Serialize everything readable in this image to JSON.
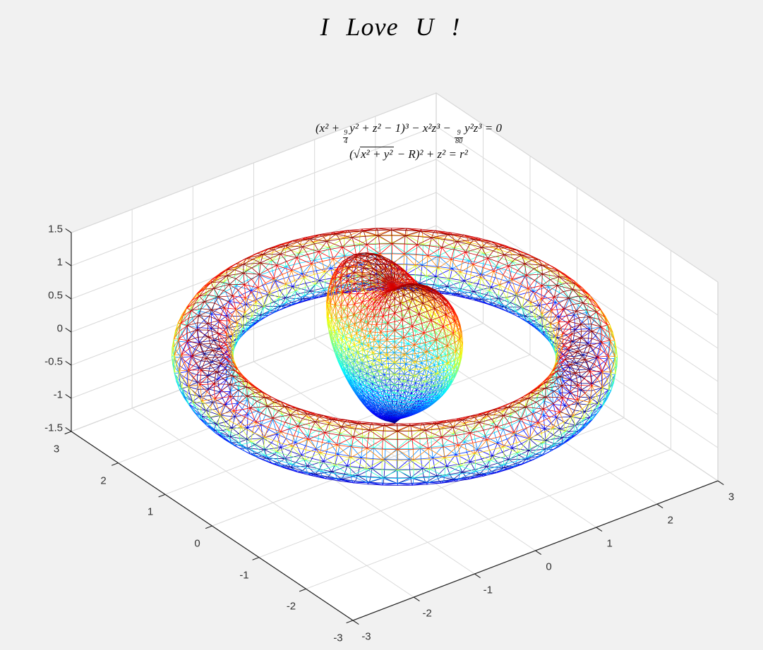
{
  "title": {
    "text": "I Love U !"
  },
  "equations": {
    "line1": {
      "pre": "(x² + ",
      "frac1_num": "9",
      "frac1_den": "4",
      "mid": "y² + z² − 1)³ − x²z³ − ",
      "frac2_num": "9",
      "frac2_den": "80",
      "post": "y²z³ = 0"
    },
    "line2": {
      "pre": "(√",
      "radicand": "x² + y²",
      "post": " − R)² + z² = r²"
    }
  },
  "chart_data": {
    "type": "surface-mesh-3d",
    "title": "I Love U !",
    "colormap": "jet",
    "legend_position": "none",
    "grid": true,
    "view": {
      "azimuth_deg": -37.5,
      "elevation_deg": 30,
      "projection": "orthographic"
    },
    "axes": {
      "x": {
        "range": [
          -3,
          3
        ],
        "tick_values": [
          3,
          2,
          1,
          0,
          -1,
          -2,
          -3
        ],
        "tick_labels": [
          "3",
          "2",
          "1",
          "0",
          "-1",
          "-2",
          "-3"
        ]
      },
      "y": {
        "range": [
          -3,
          3
        ],
        "tick_values": [
          -3,
          -2,
          -1,
          0,
          1,
          2,
          3
        ],
        "tick_labels": [
          "-3",
          "-2",
          "-1",
          "0",
          "1",
          "2",
          "3"
        ]
      },
      "z": {
        "range": [
          -1.5,
          1.5
        ],
        "tick_values": [
          1.5,
          1,
          0.5,
          0,
          -0.5,
          -1,
          -1.5
        ],
        "tick_labels": [
          "1.5",
          "1",
          "0.5",
          "0",
          "-0.5",
          "-1",
          "-1.5"
        ]
      }
    },
    "surfaces": [
      {
        "name": "heart-surface",
        "equation": "(x^2 + 9/4 y^2 + z^2 - 1)^3 - x^2 z^3 - 9/80 y^2 z^3 = 0",
        "style": "triangulated wireframe, jet colormap mapped over its z range",
        "z_range": [
          -1.0,
          1.27
        ],
        "mesh_u_segments": 48,
        "mesh_v_segments": 34
      },
      {
        "name": "torus-surface",
        "equation": "(sqrt(x^2 + y^2) - R)^2 + z^2 = r^2",
        "R": 2.5,
        "r": 0.4,
        "style": "triangulated wireframe, jet colormap mapped over its z range",
        "z_range": [
          -0.4,
          0.4
        ],
        "mesh_u_segments": 88,
        "mesh_v_segments": 18
      }
    ],
    "colors": {
      "background": "#f1f1f1",
      "wall": "#ffffff",
      "grid": "#d9d9d9",
      "wall_edge": "#cccccc",
      "axis": "#222222",
      "tick_label": "#333333",
      "title": "#000000",
      "equation": "#111111",
      "jet_low": "#00008f",
      "jet_high": "#800000"
    }
  }
}
